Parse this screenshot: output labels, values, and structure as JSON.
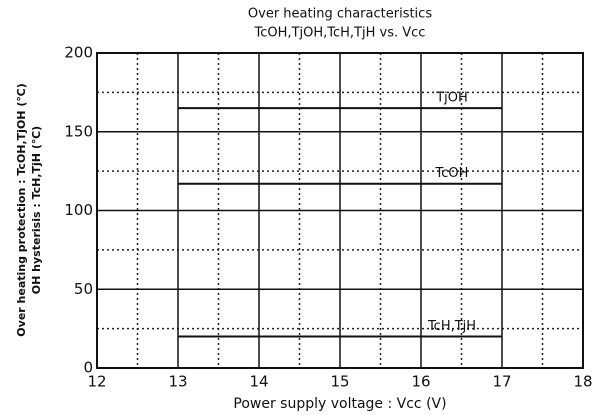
{
  "chart_data": {
    "type": "line",
    "title": "Over heating characteristics",
    "subtitle": "TcOH,TjOH,TcH,TjH  vs.  Vcc",
    "x_label": "Power supply voltage : Vcc  (V)",
    "y_label": [
      "Over heating protection : TcOH,TjOH (℃)",
      "OH hysterisis : TcH,TjH (℃)"
    ],
    "x": [
      13,
      17
    ],
    "series": [
      {
        "name": "TjOH",
        "color": "#111111",
        "values": [
          165,
          165
        ]
      },
      {
        "name": "TcOH",
        "color": "#111111",
        "values": [
          117,
          117
        ]
      },
      {
        "name": "TcH,TjH",
        "color": "#111111",
        "values": [
          20,
          20
        ]
      }
    ],
    "xlim": [
      12,
      18
    ],
    "xticks": [
      12,
      13,
      14,
      15,
      16,
      17,
      18
    ],
    "xminorticks": [
      12.5,
      13.5,
      14.5,
      15.5,
      16.5,
      17.5
    ],
    "ylim": [
      0,
      200
    ],
    "yticks": [
      0,
      50,
      100,
      150,
      200
    ],
    "yminorticks": [
      25,
      75,
      125,
      175
    ],
    "grid": true
  }
}
